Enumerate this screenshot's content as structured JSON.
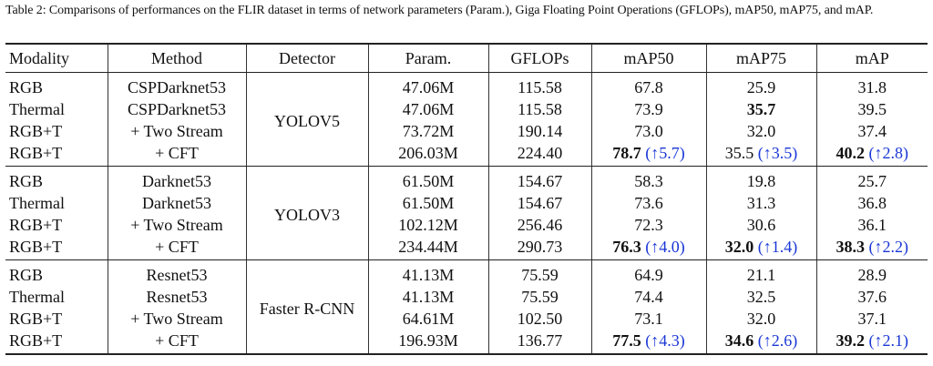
{
  "caption": "Table 2: Comparisons of performances on the FLIR dataset in terms of network parameters (Param.), Giga Floating Point Operations (GFLOPs), mAP50, mAP75, and mAP.",
  "headers": [
    "Modality",
    "Method",
    "Detector",
    "Param.",
    "GFLOPs",
    "mAP50",
    "mAP75",
    "mAP"
  ],
  "groups": [
    {
      "detector": "YOLOV5",
      "rows": [
        {
          "modality": "RGB",
          "method": "CSPDarknet53",
          "param": "47.06M",
          "gflops": "115.58",
          "map50": "67.8",
          "map50_imp": "",
          "map50_bold": false,
          "map75": "25.9",
          "map75_imp": "",
          "map75_bold": false,
          "map": "31.8",
          "map_imp": "",
          "map_bold": false
        },
        {
          "modality": "Thermal",
          "method": "CSPDarknet53",
          "param": "47.06M",
          "gflops": "115.58",
          "map50": "73.9",
          "map50_imp": "",
          "map50_bold": false,
          "map75": "35.7",
          "map75_imp": "",
          "map75_bold": true,
          "map": "39.5",
          "map_imp": "",
          "map_bold": false
        },
        {
          "modality": "RGB+T",
          "method": "+ Two Stream",
          "param": "73.72M",
          "gflops": "190.14",
          "map50": "73.0",
          "map50_imp": "",
          "map50_bold": false,
          "map75": "32.0",
          "map75_imp": "",
          "map75_bold": false,
          "map": "37.4",
          "map_imp": "",
          "map_bold": false
        },
        {
          "modality": "RGB+T",
          "method": "+ CFT",
          "param": "206.03M",
          "gflops": "224.40",
          "map50": "78.7",
          "map50_imp": "(↑5.7)",
          "map50_bold": true,
          "map75": "35.5",
          "map75_imp": "(↑3.5)",
          "map75_bold": false,
          "map": "40.2",
          "map_imp": "(↑2.8)",
          "map_bold": true
        }
      ]
    },
    {
      "detector": "YOLOV3",
      "rows": [
        {
          "modality": "RGB",
          "method": "Darknet53",
          "param": "61.50M",
          "gflops": "154.67",
          "map50": "58.3",
          "map50_imp": "",
          "map50_bold": false,
          "map75": "19.8",
          "map75_imp": "",
          "map75_bold": false,
          "map": "25.7",
          "map_imp": "",
          "map_bold": false
        },
        {
          "modality": "Thermal",
          "method": "Darknet53",
          "param": "61.50M",
          "gflops": "154.67",
          "map50": "73.6",
          "map50_imp": "",
          "map50_bold": false,
          "map75": "31.3",
          "map75_imp": "",
          "map75_bold": false,
          "map": "36.8",
          "map_imp": "",
          "map_bold": false
        },
        {
          "modality": "RGB+T",
          "method": "+ Two Stream",
          "param": "102.12M",
          "gflops": "256.46",
          "map50": "72.3",
          "map50_imp": "",
          "map50_bold": false,
          "map75": "30.6",
          "map75_imp": "",
          "map75_bold": false,
          "map": "36.1",
          "map_imp": "",
          "map_bold": false
        },
        {
          "modality": "RGB+T",
          "method": "+ CFT",
          "param": "234.44M",
          "gflops": "290.73",
          "map50": "76.3",
          "map50_imp": "(↑4.0)",
          "map50_bold": true,
          "map75": "32.0",
          "map75_imp": "(↑1.4)",
          "map75_bold": true,
          "map": "38.3",
          "map_imp": "(↑2.2)",
          "map_bold": true
        }
      ]
    },
    {
      "detector": "Faster R-CNN",
      "rows": [
        {
          "modality": "RGB",
          "method": "Resnet53",
          "param": "41.13M",
          "gflops": "75.59",
          "map50": "64.9",
          "map50_imp": "",
          "map50_bold": false,
          "map75": "21.1",
          "map75_imp": "",
          "map75_bold": false,
          "map": "28.9",
          "map_imp": "",
          "map_bold": false
        },
        {
          "modality": "Thermal",
          "method": "Resnet53",
          "param": "41.13M",
          "gflops": "75.59",
          "map50": "74.4",
          "map50_imp": "",
          "map50_bold": false,
          "map75": "32.5",
          "map75_imp": "",
          "map75_bold": false,
          "map": "37.6",
          "map_imp": "",
          "map_bold": false
        },
        {
          "modality": "RGB+T",
          "method": "+ Two Stream",
          "param": "64.61M",
          "gflops": "102.50",
          "map50": "73.1",
          "map50_imp": "",
          "map50_bold": false,
          "map75": "32.0",
          "map75_imp": "",
          "map75_bold": false,
          "map": "37.1",
          "map_imp": "",
          "map_bold": false
        },
        {
          "modality": "RGB+T",
          "method": "+ CFT",
          "param": "196.93M",
          "gflops": "136.77",
          "map50": "77.5",
          "map50_imp": "(↑4.3)",
          "map50_bold": true,
          "map75": "34.6",
          "map75_imp": "(↑2.6)",
          "map75_bold": true,
          "map": "39.2",
          "map_imp": "(↑2.1)",
          "map_bold": true
        }
      ]
    }
  ],
  "colors": {
    "improvement": "#1a37d6",
    "text": "#111111",
    "rule": "#222222"
  }
}
